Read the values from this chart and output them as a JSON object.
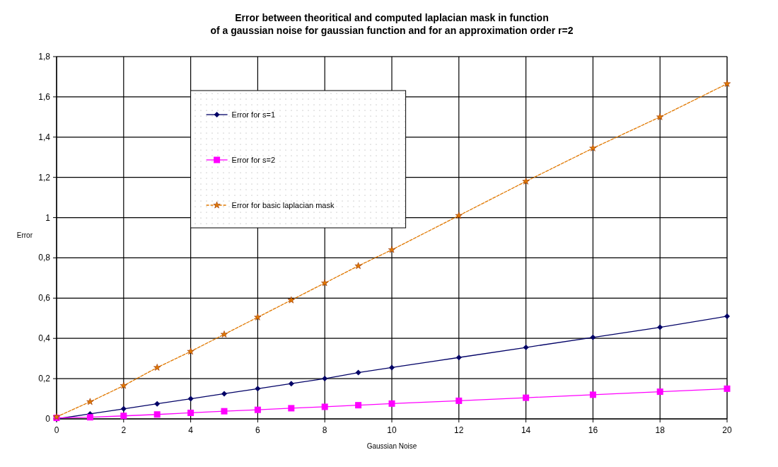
{
  "chart_data": {
    "type": "line",
    "title": "Error between theoritical and computed laplacian mask in function\nof a gaussian noise for gaussian function and for an approximation order r=2",
    "xlabel": "Gaussian Noise",
    "ylabel": "Error",
    "x": [
      0,
      1,
      2,
      3,
      4,
      5,
      6,
      7,
      8,
      9,
      10,
      12,
      14,
      16,
      18,
      20
    ],
    "series": [
      {
        "name": "Error for s=1",
        "color": "#000066",
        "marker": "diamond",
        "line_style": "solid",
        "values": [
          0,
          0.025,
          0.05,
          0.075,
          0.1,
          0.125,
          0.15,
          0.175,
          0.2,
          0.23,
          0.255,
          0.305,
          0.355,
          0.405,
          0.455,
          0.51
        ]
      },
      {
        "name": "Error for s=2",
        "color": "#ff00ff",
        "marker": "square",
        "line_style": "solid",
        "values": [
          0.005,
          0.008,
          0.015,
          0.022,
          0.03,
          0.038,
          0.045,
          0.053,
          0.06,
          0.068,
          0.076,
          0.09,
          0.105,
          0.12,
          0.135,
          0.15
        ]
      },
      {
        "name": "Error for basic laplacian mask",
        "color": "#e07800",
        "marker": "star",
        "line_style": "dashed",
        "values": [
          0.01,
          0.085,
          0.165,
          0.255,
          0.335,
          0.42,
          0.505,
          0.59,
          0.675,
          0.76,
          0.84,
          1.01,
          1.18,
          1.345,
          1.5,
          1.665
        ]
      }
    ],
    "xlim": [
      0,
      20
    ],
    "xticks": [
      0,
      2,
      4,
      6,
      8,
      10,
      12,
      14,
      16,
      18,
      20
    ],
    "ylim": [
      0,
      1.8
    ],
    "yticks": [
      0,
      {
        "value": 0.2,
        "label": "0,2"
      },
      {
        "value": 0.4,
        "label": "0,4"
      },
      {
        "value": 0.6,
        "label": "0,6"
      },
      {
        "value": 0.8,
        "label": "0,8"
      },
      1,
      {
        "value": 1.2,
        "label": "1,2"
      },
      {
        "value": 1.4,
        "label": "1,4"
      },
      {
        "value": 1.6,
        "label": "1,6"
      },
      {
        "value": 1.8,
        "label": "1,8"
      }
    ],
    "grid": true,
    "legend": "top left"
  }
}
